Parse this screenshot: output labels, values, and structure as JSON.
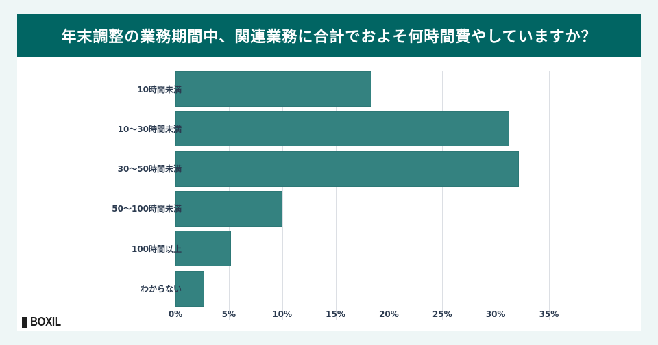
{
  "header": {
    "title": "年末調整の業務期間中、関連業務に合計でおよそ何時間費やしていますか？"
  },
  "logo": {
    "text": "BOXIL",
    "mark": "MAG"
  },
  "colors": {
    "header_bg": "#016563",
    "bar": "#348280",
    "background": "#eef6f6",
    "text": "#2b3a4f"
  },
  "axis": {
    "ticks": [
      "0%",
      "5%",
      "10%",
      "15%",
      "20%",
      "25%",
      "30%",
      "35%"
    ]
  },
  "categories": [
    "10時間未満",
    "10〜30時間未満",
    "30〜50時間未満",
    "50〜100時間未満",
    "100時間以上",
    "わからない"
  ],
  "chart_data": {
    "type": "bar",
    "orientation": "horizontal",
    "title": "年末調整の業務期間中、関連業務に合計でおよそ何時間費やしていますか？",
    "categories": [
      "10時間未満",
      "10〜30時間未満",
      "30〜50時間未満",
      "50〜100時間未満",
      "100時間以上",
      "わからない"
    ],
    "values": [
      18.4,
      31.3,
      32.2,
      10.0,
      5.2,
      2.7
    ],
    "unit": "%",
    "xlabel": "",
    "ylabel": "",
    "xlim": [
      0,
      35
    ],
    "xticks": [
      "0%",
      "5%",
      "10%",
      "15%",
      "20%",
      "25%",
      "30%",
      "35%"
    ],
    "grid": true,
    "legend": null
  }
}
